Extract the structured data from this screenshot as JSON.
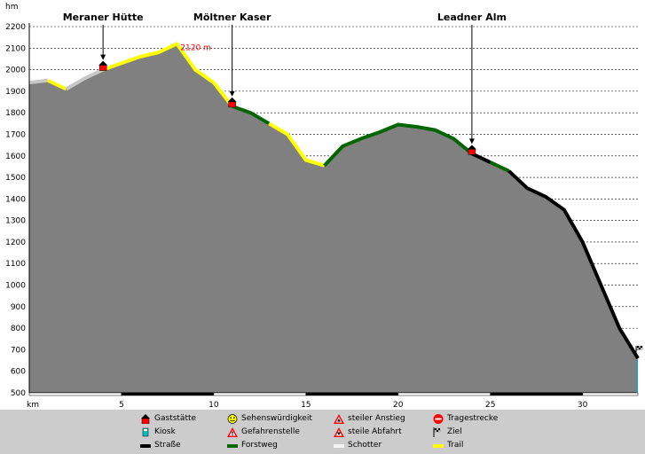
{
  "chart_data": {
    "type": "area",
    "xlabel": "km",
    "ylabel": "hm",
    "xlim": [
      0,
      33
    ],
    "ylim": [
      500,
      2200
    ],
    "xticks": [
      5,
      10,
      15,
      20,
      25,
      30
    ],
    "yticks": [
      600,
      700,
      800,
      900,
      1000,
      1100,
      1200,
      1300,
      1400,
      1500,
      1600,
      1700,
      1800,
      1900,
      2000,
      2100,
      2200
    ],
    "grid": "horizontal-dashed",
    "profile": {
      "x": [
        0,
        1,
        2,
        3,
        4,
        5,
        6,
        7,
        8,
        9,
        10,
        11,
        12,
        13,
        14,
        15,
        16,
        17,
        18,
        19,
        20,
        21,
        22,
        23,
        24,
        25,
        26,
        27,
        28,
        29,
        30,
        31,
        32,
        33
      ],
      "y": [
        1940,
        1950,
        1910,
        1960,
        2000,
        2030,
        2060,
        2080,
        2120,
        2000,
        1940,
        1830,
        1800,
        1750,
        1700,
        1580,
        1555,
        1645,
        1680,
        1710,
        1745,
        1735,
        1720,
        1680,
        1610,
        1570,
        1530,
        1450,
        1410,
        1350,
        1200,
        1000,
        800,
        660
      ]
    },
    "surfaces": [
      {
        "type": "schotter",
        "from": 0,
        "to": 1
      },
      {
        "type": "trail",
        "from": 1,
        "to": 2
      },
      {
        "type": "schotter",
        "from": 2,
        "to": 4
      },
      {
        "type": "trail",
        "from": 4,
        "to": 11
      },
      {
        "type": "forstweg",
        "from": 11,
        "to": 13
      },
      {
        "type": "trail",
        "from": 13,
        "to": 16
      },
      {
        "type": "forstweg",
        "from": 16,
        "to": 24
      },
      {
        "type": "strasse",
        "from": 24,
        "to": 25
      },
      {
        "type": "forstweg",
        "from": 25,
        "to": 26
      },
      {
        "type": "strasse",
        "from": 26,
        "to": 33
      }
    ],
    "huts": [
      {
        "name": "Meraner Hütte",
        "x": 4
      },
      {
        "name": "Möltner Kaser",
        "x": 11
      },
      {
        "name": "Leadner Alm",
        "x": 24
      }
    ],
    "peak_annotation": {
      "label": "2120 m",
      "x": 8
    },
    "finish": {
      "x": 33
    },
    "kiosk": {
      "x": 33
    }
  },
  "colors": {
    "profile_fill": "#808080",
    "strasse": "#000000",
    "forstweg": "#006600",
    "trail": "#ffff00",
    "schotter": "#c8c8c8",
    "annotation": "#ff0000",
    "legend_bg": "#cccccc"
  },
  "legend": [
    {
      "icon": "house-icon",
      "label": "Gaststätte"
    },
    {
      "icon": "smiley-icon",
      "label": "Sehenswürdigkeit"
    },
    {
      "icon": "warning-triangle-up-icon",
      "label": "steiler Anstieg"
    },
    {
      "icon": "no-entry-icon",
      "label": "Tragestrecke"
    },
    {
      "icon": "kiosk-icon",
      "label": "Kiosk"
    },
    {
      "icon": "warning-triangle-icon",
      "label": "Gefahrenstelle"
    },
    {
      "icon": "warning-triangle-down-icon",
      "label": "steile Abfahrt"
    },
    {
      "icon": "checkered-flag-icon",
      "label": "Ziel"
    },
    {
      "icon": "line-black-icon",
      "label": "Straße"
    },
    {
      "icon": "line-green-icon",
      "label": "Forstweg"
    },
    {
      "icon": "line-gray-icon",
      "label": "Schotter"
    },
    {
      "icon": "line-yellow-icon",
      "label": "Trail"
    }
  ]
}
